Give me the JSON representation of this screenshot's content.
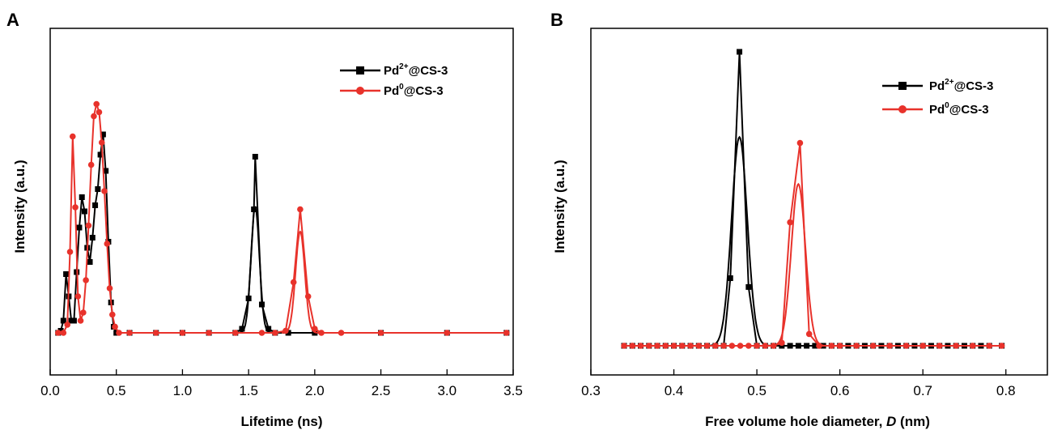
{
  "colors": {
    "black": "#000000",
    "red": "#e8322b"
  },
  "chart_data": [
    {
      "panel": "A",
      "type": "line",
      "xlabel": "Lifetime (ns)",
      "ylabel": "Intensity (a.u.)",
      "xlim": [
        0.0,
        3.5
      ],
      "xticks": [
        "0.0",
        "0.5",
        "1.0",
        "1.5",
        "2.0",
        "2.5",
        "3.0",
        "3.5"
      ],
      "y_tick_labels": false,
      "legend": "top-right",
      "series": [
        {
          "name": "Pd2+@CS-3",
          "label_base": "Pd",
          "label_sup": "2+",
          "label_rest": "@CS-3",
          "color": "#000000",
          "marker": "square",
          "points": [
            [
              0.06,
              0.0
            ],
            [
              0.08,
              0.01
            ],
            [
              0.1,
              0.06
            ],
            [
              0.12,
              0.29
            ],
            [
              0.14,
              0.18
            ],
            [
              0.16,
              0.06
            ],
            [
              0.18,
              0.06
            ],
            [
              0.2,
              0.3
            ],
            [
              0.22,
              0.52
            ],
            [
              0.24,
              0.67
            ],
            [
              0.26,
              0.6
            ],
            [
              0.28,
              0.42
            ],
            [
              0.3,
              0.35
            ],
            [
              0.32,
              0.47
            ],
            [
              0.34,
              0.63
            ],
            [
              0.36,
              0.71
            ],
            [
              0.38,
              0.88
            ],
            [
              0.4,
              0.98
            ],
            [
              0.42,
              0.8
            ],
            [
              0.44,
              0.45
            ],
            [
              0.46,
              0.15
            ],
            [
              0.48,
              0.03
            ],
            [
              0.5,
              0.0
            ],
            [
              0.6,
              0.0
            ],
            [
              0.8,
              0.0
            ],
            [
              1.0,
              0.0
            ],
            [
              1.2,
              0.0
            ],
            [
              1.4,
              0.0
            ],
            [
              1.45,
              0.02
            ],
            [
              1.5,
              0.17
            ],
            [
              1.54,
              0.61
            ],
            [
              1.55,
              0.87
            ],
            [
              1.6,
              0.14
            ],
            [
              1.65,
              0.02
            ],
            [
              1.7,
              0.0
            ],
            [
              1.8,
              0.0
            ],
            [
              2.0,
              0.0
            ],
            [
              2.5,
              0.0
            ],
            [
              3.0,
              0.0
            ],
            [
              3.45,
              0.0
            ]
          ],
          "peak_curves": [
            [
              1.55,
              0.62,
              0.032
            ]
          ]
        },
        {
          "name": "Pd0@CS-3",
          "label_base": "Pd",
          "label_sup": "0",
          "label_rest": "@CS-3",
          "color": "#e8322b",
          "marker": "circle",
          "points": [
            [
              0.06,
              0.0
            ],
            [
              0.1,
              0.0
            ],
            [
              0.13,
              0.04
            ],
            [
              0.15,
              0.4
            ],
            [
              0.17,
              0.97
            ],
            [
              0.19,
              0.62
            ],
            [
              0.21,
              0.18
            ],
            [
              0.23,
              0.06
            ],
            [
              0.25,
              0.1
            ],
            [
              0.27,
              0.26
            ],
            [
              0.29,
              0.53
            ],
            [
              0.31,
              0.83
            ],
            [
              0.33,
              1.07
            ],
            [
              0.35,
              1.13
            ],
            [
              0.37,
              1.09
            ],
            [
              0.39,
              0.94
            ],
            [
              0.41,
              0.7
            ],
            [
              0.43,
              0.44
            ],
            [
              0.45,
              0.22
            ],
            [
              0.47,
              0.09
            ],
            [
              0.49,
              0.03
            ],
            [
              0.52,
              0.0
            ],
            [
              0.6,
              0.0
            ],
            [
              0.8,
              0.0
            ],
            [
              1.0,
              0.0
            ],
            [
              1.2,
              0.0
            ],
            [
              1.4,
              0.0
            ],
            [
              1.6,
              0.0
            ],
            [
              1.7,
              0.0
            ],
            [
              1.78,
              0.01
            ],
            [
              1.84,
              0.25
            ],
            [
              1.89,
              0.61
            ],
            [
              1.95,
              0.18
            ],
            [
              2.0,
              0.02
            ],
            [
              2.05,
              0.0
            ],
            [
              2.2,
              0.0
            ],
            [
              2.5,
              0.0
            ],
            [
              3.0,
              0.0
            ],
            [
              3.45,
              0.0
            ]
          ],
          "peak_curves": [
            [
              1.89,
              0.5,
              0.035
            ]
          ]
        }
      ]
    },
    {
      "panel": "B",
      "type": "line",
      "xlabel_main": "Free volume hole diameter, ",
      "xlabel_var": "D",
      "xlabel_unit": " (nm)",
      "ylabel": "Intensity (a.u.)",
      "xlim": [
        0.3,
        0.85
      ],
      "xticks": [
        "0.3",
        "0.4",
        "0.5",
        "0.6",
        "0.7",
        "0.8"
      ],
      "y_tick_labels": false,
      "legend": "top-right",
      "series": [
        {
          "name": "Pd2+@CS-3",
          "label_base": "Pd",
          "label_sup": "2+",
          "label_rest": "@CS-3",
          "color": "#000000",
          "marker": "square",
          "points": [
            [
              0.34,
              0
            ],
            [
              0.35,
              0
            ],
            [
              0.36,
              0
            ],
            [
              0.37,
              0
            ],
            [
              0.38,
              0
            ],
            [
              0.39,
              0
            ],
            [
              0.4,
              0
            ],
            [
              0.41,
              0
            ],
            [
              0.42,
              0
            ],
            [
              0.43,
              0
            ],
            [
              0.44,
              0
            ],
            [
              0.45,
              0
            ],
            [
              0.46,
              0
            ],
            [
              0.468,
              0.23
            ],
            [
              0.479,
              1.0
            ],
            [
              0.49,
              0.2
            ],
            [
              0.5,
              0.0
            ],
            [
              0.51,
              0
            ],
            [
              0.52,
              0
            ],
            [
              0.53,
              0
            ],
            [
              0.54,
              0
            ],
            [
              0.55,
              0
            ],
            [
              0.56,
              0
            ],
            [
              0.57,
              0
            ],
            [
              0.58,
              0
            ],
            [
              0.59,
              0
            ],
            [
              0.6,
              0
            ],
            [
              0.61,
              0
            ],
            [
              0.62,
              0
            ],
            [
              0.63,
              0
            ],
            [
              0.64,
              0
            ],
            [
              0.65,
              0
            ],
            [
              0.66,
              0
            ],
            [
              0.67,
              0
            ],
            [
              0.68,
              0
            ],
            [
              0.69,
              0
            ],
            [
              0.7,
              0
            ],
            [
              0.71,
              0
            ],
            [
              0.72,
              0
            ],
            [
              0.73,
              0
            ],
            [
              0.74,
              0
            ],
            [
              0.75,
              0
            ],
            [
              0.76,
              0
            ],
            [
              0.77,
              0
            ],
            [
              0.78,
              0
            ],
            [
              0.795,
              0
            ]
          ],
          "peak_curves": [
            [
              0.479,
              0.71,
              0.0095
            ]
          ]
        },
        {
          "name": "Pd0@CS-3",
          "label_base": "Pd",
          "label_sup": "0",
          "label_rest": "@CS-3",
          "color": "#e8322b",
          "marker": "circle",
          "points": [
            [
              0.34,
              0
            ],
            [
              0.35,
              0
            ],
            [
              0.36,
              0
            ],
            [
              0.37,
              0
            ],
            [
              0.38,
              0
            ],
            [
              0.39,
              0
            ],
            [
              0.4,
              0
            ],
            [
              0.41,
              0
            ],
            [
              0.42,
              0
            ],
            [
              0.43,
              0
            ],
            [
              0.44,
              0
            ],
            [
              0.45,
              0
            ],
            [
              0.46,
              0
            ],
            [
              0.47,
              0
            ],
            [
              0.48,
              0
            ],
            [
              0.49,
              0
            ],
            [
              0.5,
              0
            ],
            [
              0.51,
              0
            ],
            [
              0.52,
              0
            ],
            [
              0.53,
              0.01
            ],
            [
              0.54,
              0.42
            ],
            [
              0.552,
              0.69
            ],
            [
              0.563,
              0.04
            ],
            [
              0.575,
              0
            ],
            [
              0.59,
              0
            ],
            [
              0.6,
              0
            ],
            [
              0.62,
              0
            ],
            [
              0.64,
              0
            ],
            [
              0.66,
              0
            ],
            [
              0.68,
              0
            ],
            [
              0.7,
              0
            ],
            [
              0.72,
              0
            ],
            [
              0.74,
              0
            ],
            [
              0.76,
              0
            ],
            [
              0.78,
              0
            ],
            [
              0.795,
              0
            ]
          ],
          "peak_curves": [
            [
              0.55,
              0.55,
              0.0085
            ]
          ]
        }
      ]
    }
  ]
}
